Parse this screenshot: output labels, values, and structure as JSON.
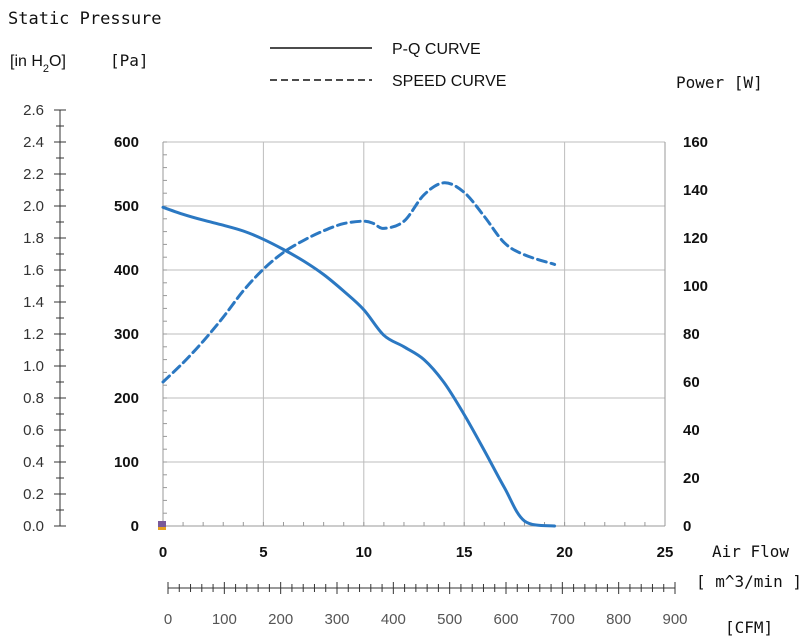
{
  "chart_data": {
    "type": "line",
    "title": "Static Pressure",
    "y_units": {
      "inH2O_label": "[in H",
      "inH2O_sub": "2",
      "inH2O_close": "O]",
      "pa_label": "[Pa]"
    },
    "y2label": "Power [W]",
    "xlabel": "Air Flow",
    "xunit": "[ m^3/min ]",
    "x2unit": "[CFM]",
    "legend": [
      {
        "label": "P-Q CURVE",
        "style": "solid"
      },
      {
        "label": "SPEED CURVE",
        "style": "dashed"
      }
    ],
    "x_ticks": [
      "0",
      "5",
      "10",
      "15",
      "20",
      "25"
    ],
    "pa_ticks": [
      "0",
      "100",
      "200",
      "300",
      "400",
      "500",
      "600"
    ],
    "power_ticks": [
      "0",
      "20",
      "40",
      "60",
      "80",
      "100",
      "120",
      "140",
      "160"
    ],
    "inh2o_ticks": [
      "0.0",
      "0.2",
      "0.4",
      "0.6",
      "0.8",
      "1.0",
      "1.2",
      "1.4",
      "1.6",
      "1.8",
      "2.0",
      "2.2",
      "2.4",
      "2.6"
    ],
    "cfm_ticks": [
      "0",
      "100",
      "200",
      "300",
      "400",
      "500",
      "600",
      "700",
      "800",
      "900"
    ],
    "xlim": [
      0,
      25
    ],
    "ylim": [
      0,
      600
    ],
    "y2lim": [
      0,
      160
    ],
    "grid": true,
    "legend_position": "top-center",
    "line_color": "#2b78c2",
    "series": [
      {
        "name": "P-Q CURVE",
        "axis": "pa",
        "x": [
          0,
          1,
          2,
          3,
          4,
          5,
          6,
          7,
          8,
          9,
          10,
          11,
          12,
          13,
          14,
          15,
          16,
          17,
          18,
          19,
          19.5
        ],
        "y": [
          498,
          487,
          478,
          470,
          461,
          448,
          432,
          414,
          393,
          367,
          338,
          298,
          280,
          260,
          224,
          174,
          118,
          60,
          8,
          -45,
          0
        ]
      },
      {
        "name": "SPEED CURVE",
        "axis": "power",
        "x": [
          0,
          1,
          2,
          3,
          4,
          5,
          6,
          7,
          8,
          9,
          10,
          10.5,
          11,
          12,
          13,
          14,
          15,
          16,
          17,
          18,
          19.5
        ],
        "y": [
          60,
          68,
          77,
          87,
          98,
          107,
          114,
          119,
          123,
          126,
          127,
          126,
          124,
          127,
          138,
          143,
          139,
          129,
          118,
          113,
          109
        ]
      }
    ]
  }
}
